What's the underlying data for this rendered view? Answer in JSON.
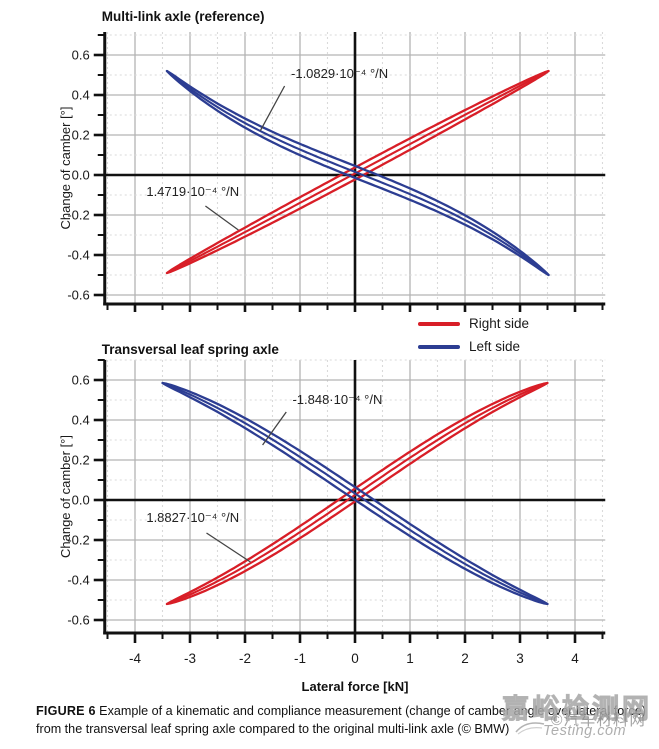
{
  "legend": {
    "items": [
      {
        "label": "Right side",
        "color": "#d81e27"
      },
      {
        "label": "Left side",
        "color": "#2c3d92"
      }
    ]
  },
  "caption": {
    "tag": "FIGURE 6",
    "text": " Example of a kinematic and compliance measurement (change of camber angle over lateral force) from the transversal leaf spring axle compared to the original multi-link axle (© BMW)"
  },
  "watermark": {
    "line1": "嘉峪检测网",
    "line2": "©汽车材料网",
    "line3": "Testing.com"
  },
  "chart_data": [
    {
      "type": "line",
      "title": "Multi-link axle (reference)",
      "ylabel": "Change of camber [°]",
      "xlabel": "",
      "show_x_labels": false,
      "xlim": [
        -4.55,
        4.55
      ],
      "ylim": [
        -0.645,
        0.715
      ],
      "x_major_ticks": [
        -4,
        -3,
        -2,
        -1,
        0,
        1,
        2,
        3,
        4
      ],
      "y_major_ticks": [
        0.6,
        0.4,
        0.2,
        0.0,
        -0.2,
        -0.4,
        -0.6
      ],
      "grid": {
        "major_color": "#b3b3b3",
        "minor_color": "#dadada"
      },
      "series": [
        {
          "name": "Right side",
          "color": "#d81e27",
          "x_start": -3.42,
          "y_start": -0.49,
          "x_end": 3.52,
          "y_end": 0.52,
          "center_slope_deg_per_kN": 0.14719,
          "loop_half_width": 0.03,
          "annotation": {
            "text": "1.4719·10⁻⁴ °/N",
            "x": -2.95,
            "y": -0.085,
            "leader": [
              [
                -2.72,
                -0.155
              ],
              [
                -2.12,
                -0.275
              ]
            ]
          }
        },
        {
          "name": "Left side",
          "color": "#2c3d92",
          "x_start": -3.42,
          "y_start": 0.52,
          "x_end": 3.52,
          "y_end": -0.5,
          "center_slope_deg_per_kN": -0.10829,
          "loop_half_width": 0.03,
          "annotation": {
            "text": "-1.0829·10⁻⁴ °/N",
            "x": -0.28,
            "y": 0.505,
            "leader": [
              [
                -1.28,
                0.445
              ],
              [
                -1.72,
                0.222
              ]
            ]
          }
        }
      ]
    },
    {
      "type": "line",
      "title": "Transversal leaf spring axle",
      "ylabel": "Change of camber [°]",
      "xlabel": "Lateral force [kN]",
      "show_x_labels": true,
      "xlim": [
        -4.55,
        4.55
      ],
      "ylim": [
        -0.665,
        0.7
      ],
      "x_major_ticks": [
        -4,
        -3,
        -2,
        -1,
        0,
        1,
        2,
        3,
        4
      ],
      "y_major_ticks": [
        0.6,
        0.4,
        0.2,
        0.0,
        -0.2,
        -0.4,
        -0.6
      ],
      "grid": {
        "major_color": "#b3b3b3",
        "minor_color": "#dadada"
      },
      "series": [
        {
          "name": "Right side",
          "color": "#d81e27",
          "x_start": -3.42,
          "y_start": -0.52,
          "x_end": 3.5,
          "y_end": 0.585,
          "center_slope_deg_per_kN": 0.18827,
          "loop_half_width": 0.032,
          "annotation": {
            "text": "1.8827·10⁻⁴ °/N",
            "x": -2.95,
            "y": -0.09,
            "leader": [
              [
                -2.7,
                -0.165
              ],
              [
                -1.9,
                -0.31
              ]
            ]
          }
        },
        {
          "name": "Left side",
          "color": "#2c3d92",
          "x_start": -3.5,
          "y_start": 0.585,
          "x_end": 3.5,
          "y_end": -0.52,
          "center_slope_deg_per_kN": -0.1848,
          "loop_half_width": 0.032,
          "annotation": {
            "text": "-1.848·10⁻⁴ °/N",
            "x": -0.32,
            "y": 0.5,
            "leader": [
              [
                -1.25,
                0.44
              ],
              [
                -1.68,
                0.275
              ]
            ]
          }
        }
      ]
    }
  ]
}
